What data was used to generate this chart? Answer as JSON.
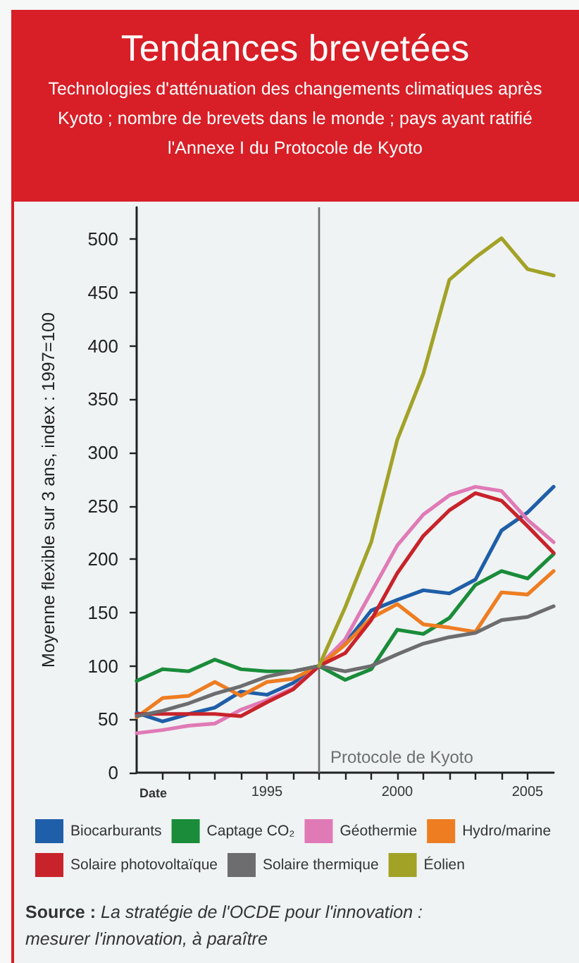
{
  "chart_data": {
    "type": "line",
    "title": "Tendances brevetées",
    "subtitle": "Technologies d'atténuation des changements climatiques après Kyoto ; nombre de brevets dans le monde ; pays ayant ratifié l'Annexe I du Protocole de Kyoto",
    "xlabel": "Date",
    "ylabel": "Moyenne flexible sur 3 ans, index : 1997=100",
    "x": [
      1990,
      1991,
      1992,
      1993,
      1994,
      1995,
      1996,
      1997,
      1998,
      1999,
      2000,
      2001,
      2002,
      2003,
      2004,
      2005,
      2006
    ],
    "xlim": [
      1990,
      2006
    ],
    "xticks": [
      {
        "value": 1991,
        "label": null
      },
      {
        "value": 1992,
        "label": null
      },
      {
        "value": 1993,
        "label": null
      },
      {
        "value": 1994,
        "label": null
      },
      1995,
      {
        "value": 1996,
        "label": null
      },
      {
        "value": 1997,
        "label": null
      },
      {
        "value": 1998,
        "label": null
      },
      {
        "value": 1999,
        "label": null
      },
      2000,
      {
        "value": 2001,
        "label": null
      },
      {
        "value": 2002,
        "label": null
      },
      {
        "value": 2003,
        "label": null
      },
      {
        "value": 2004,
        "label": null
      },
      2005
    ],
    "ylim": [
      0,
      530
    ],
    "yticks": [
      0,
      50,
      100,
      150,
      200,
      250,
      300,
      350,
      400,
      450,
      500
    ],
    "legend": "bottom",
    "ref_lines": [
      {
        "axis": "x",
        "value": 1997,
        "label": "Protocole de Kyoto",
        "color": "#6e6e6e"
      }
    ],
    "annotations": [
      "Source : La stratégie de l'OCDE pour l'innovation : mesurer l'innovation, à paraître"
    ],
    "series": [
      {
        "name": "Biocarburants",
        "color": "#1f5ea8",
        "values": [
          56,
          48,
          55,
          61,
          76,
          73,
          84,
          100,
          121,
          152,
          162,
          171,
          168,
          181,
          227,
          244,
          268
        ]
      },
      {
        "name": "Captage CO₂",
        "color": "#1a8c3a",
        "values": [
          86,
          97,
          95,
          106,
          97,
          95,
          95,
          100,
          87,
          97,
          134,
          130,
          145,
          176,
          189,
          182,
          205
        ]
      },
      {
        "name": "Géothermie",
        "color": "#e07ab6",
        "values": [
          37,
          40,
          44,
          46,
          59,
          68,
          79,
          100,
          125,
          169,
          213,
          242,
          260,
          268,
          264,
          237,
          216
        ]
      },
      {
        "name": "Hydro/marine",
        "color": "#ee7d22",
        "values": [
          52,
          70,
          72,
          85,
          72,
          85,
          88,
          100,
          120,
          145,
          158,
          139,
          136,
          132,
          169,
          167,
          189
        ]
      },
      {
        "name": "Solaire photovoltaïque",
        "color": "#c8232b",
        "values": [
          55,
          55,
          55,
          55,
          53,
          66,
          78,
          100,
          112,
          143,
          187,
          222,
          246,
          262,
          255,
          231,
          206
        ]
      },
      {
        "name": "Solaire thermique",
        "color": "#6d6c6e",
        "values": [
          53,
          58,
          65,
          74,
          81,
          90,
          95,
          100,
          95,
          100,
          111,
          121,
          127,
          131,
          143,
          146,
          156
        ]
      },
      {
        "name": "Éolien",
        "color": "#a2a227",
        "values": [
          null,
          null,
          null,
          null,
          null,
          null,
          null,
          100,
          155,
          216,
          312,
          374,
          462,
          483,
          501,
          472,
          466
        ]
      }
    ]
  }
}
